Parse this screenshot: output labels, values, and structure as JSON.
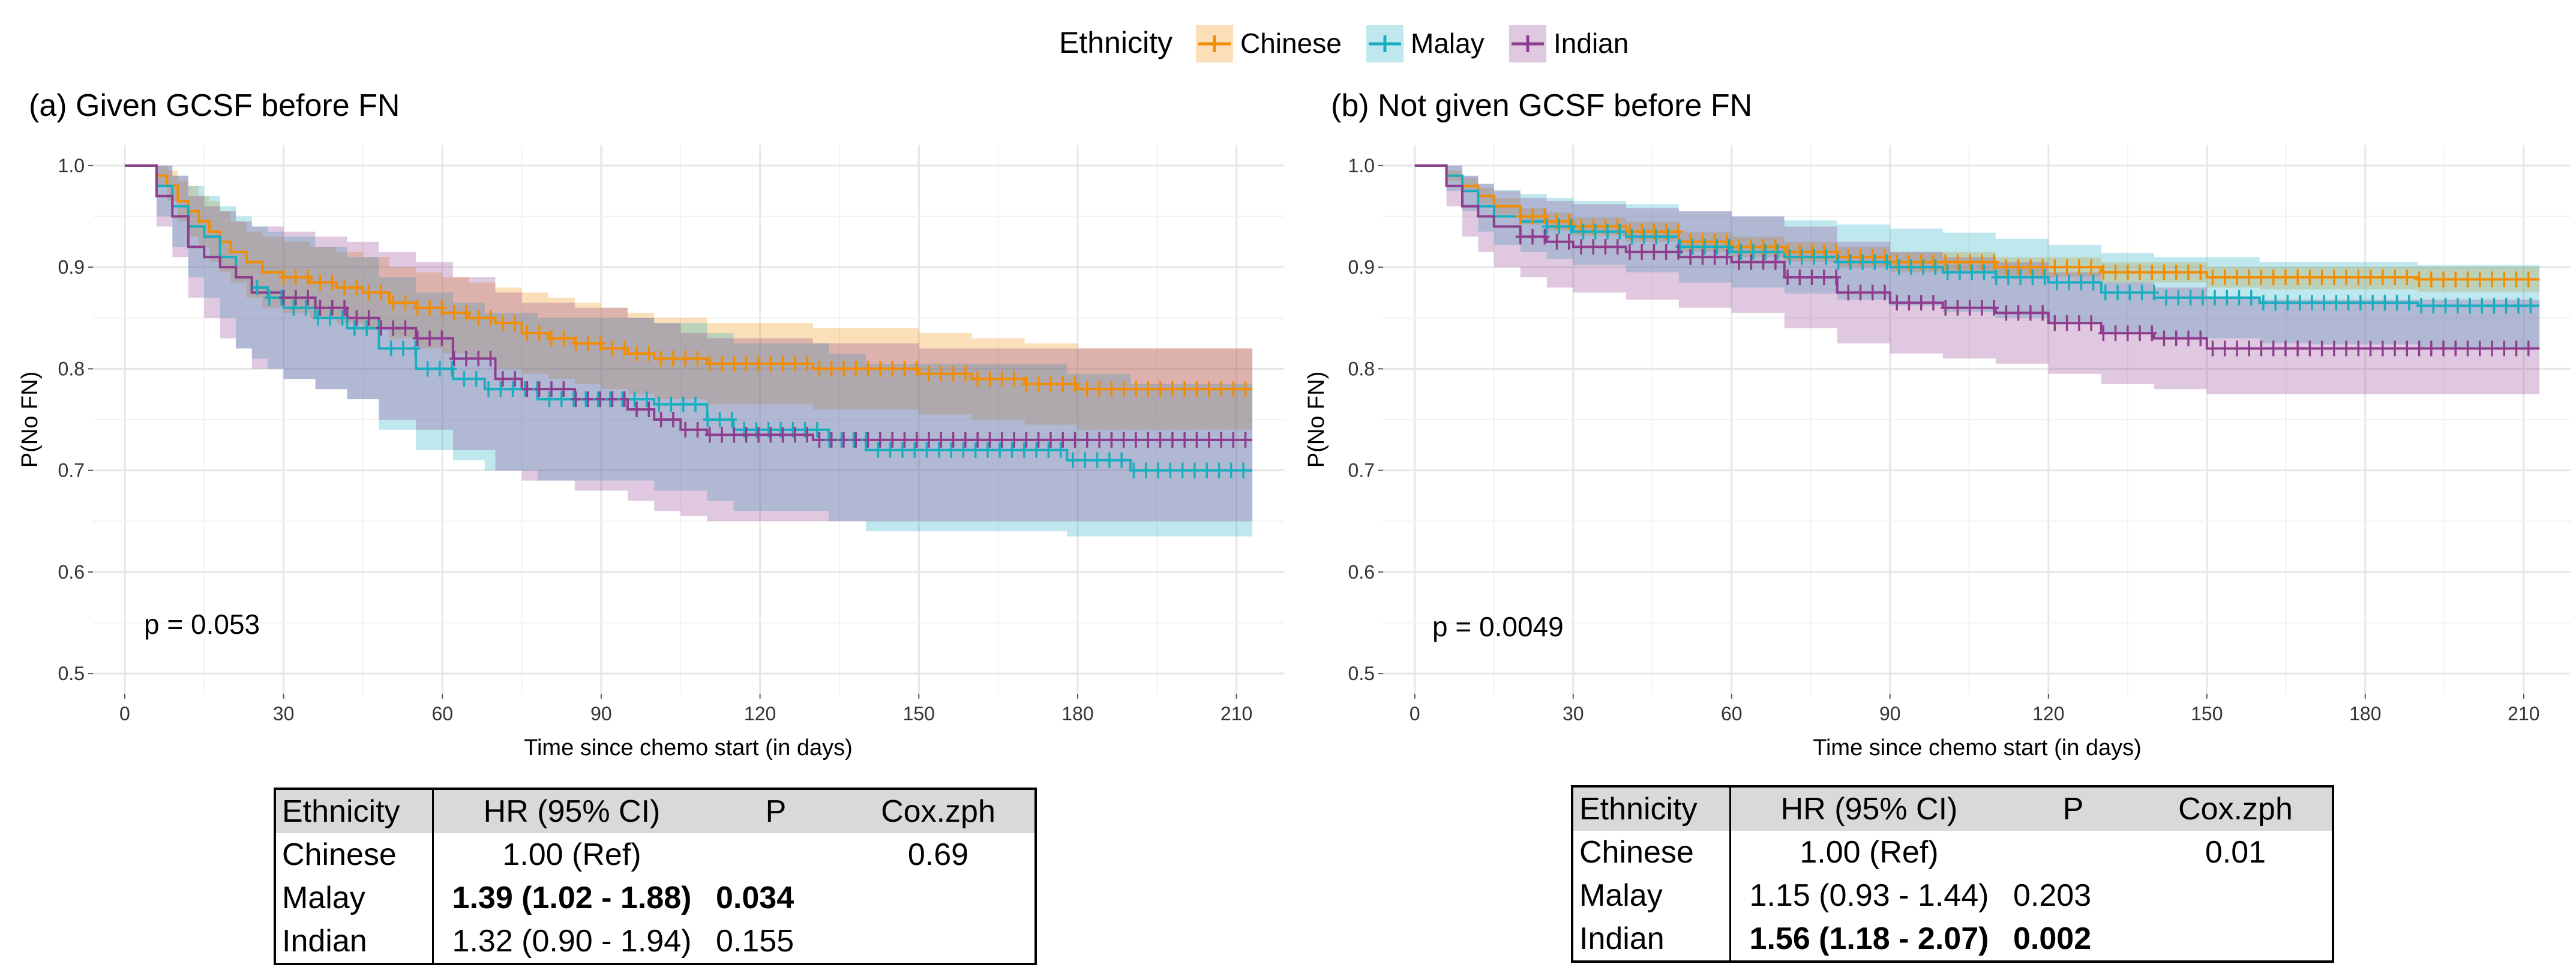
{
  "colors": {
    "Chinese": "#f28c00",
    "Malay": "#17aebf",
    "Indian": "#8e3d8e"
  },
  "legend": {
    "title": "Ethnicity",
    "items": [
      "Chinese",
      "Malay",
      "Indian"
    ]
  },
  "chart_data": [
    {
      "type": "line",
      "subtype": "kaplan-meier step curves with 95% confidence bands and censor marks",
      "title": "(a) Given GCSF before FN",
      "xlabel": "Time since chemo start (in days)",
      "ylabel": "P(No FN)",
      "xlim": [
        -6,
        219
      ],
      "ylim": [
        0.48,
        1.02
      ],
      "xticks": [
        0,
        30,
        60,
        90,
        120,
        150,
        180,
        210
      ],
      "yticks": [
        0.5,
        0.6,
        0.7,
        0.8,
        0.9,
        1.0
      ],
      "ytick_labels": [
        "0.5",
        "0.6",
        "0.7",
        "0.8",
        "0.9",
        "1.0"
      ],
      "grid": true,
      "annotation": "p = 0.053",
      "series": [
        {
          "name": "Chinese",
          "x": [
            0,
            2,
            4,
            6,
            8,
            10,
            12,
            14,
            16,
            18,
            20,
            23,
            26,
            30,
            35,
            40,
            45,
            50,
            55,
            60,
            65,
            70,
            75,
            80,
            85,
            90,
            95,
            100,
            105,
            110,
            115,
            120,
            130,
            140,
            150,
            160,
            170,
            180,
            190,
            200,
            213
          ],
          "y": [
            1.0,
            1.0,
            1.0,
            0.99,
            0.98,
            0.965,
            0.955,
            0.945,
            0.935,
            0.925,
            0.915,
            0.905,
            0.895,
            0.89,
            0.885,
            0.88,
            0.875,
            0.865,
            0.86,
            0.855,
            0.85,
            0.845,
            0.835,
            0.83,
            0.825,
            0.82,
            0.815,
            0.81,
            0.81,
            0.805,
            0.805,
            0.805,
            0.8,
            0.8,
            0.795,
            0.79,
            0.785,
            0.78,
            0.78,
            0.78,
            0.78
          ],
          "lower": [
            1.0,
            1.0,
            1.0,
            0.98,
            0.965,
            0.945,
            0.93,
            0.92,
            0.905,
            0.895,
            0.885,
            0.87,
            0.86,
            0.855,
            0.85,
            0.845,
            0.84,
            0.83,
            0.82,
            0.815,
            0.81,
            0.8,
            0.795,
            0.79,
            0.785,
            0.78,
            0.775,
            0.77,
            0.77,
            0.765,
            0.765,
            0.765,
            0.76,
            0.76,
            0.755,
            0.75,
            0.745,
            0.74,
            0.74,
            0.74,
            0.74
          ],
          "upper": [
            1.0,
            1.0,
            1.0,
            1.0,
            0.995,
            0.985,
            0.98,
            0.97,
            0.965,
            0.955,
            0.945,
            0.935,
            0.93,
            0.925,
            0.92,
            0.915,
            0.91,
            0.9,
            0.895,
            0.89,
            0.885,
            0.88,
            0.875,
            0.87,
            0.865,
            0.86,
            0.855,
            0.85,
            0.85,
            0.845,
            0.845,
            0.845,
            0.84,
            0.84,
            0.835,
            0.83,
            0.825,
            0.82,
            0.82,
            0.82,
            0.82
          ],
          "censor_x_range": [
            30,
            213
          ]
        },
        {
          "name": "Malay",
          "x": [
            0,
            3,
            6,
            9,
            12,
            15,
            18,
            21,
            24,
            27,
            30,
            36,
            42,
            48,
            55,
            62,
            68,
            72,
            78,
            85,
            90,
            100,
            110,
            115,
            125,
            133,
            140,
            150,
            160,
            170,
            178,
            190,
            200,
            213
          ],
          "y": [
            1.0,
            1.0,
            0.98,
            0.96,
            0.94,
            0.93,
            0.91,
            0.89,
            0.88,
            0.87,
            0.86,
            0.85,
            0.84,
            0.82,
            0.8,
            0.79,
            0.78,
            0.78,
            0.77,
            0.77,
            0.77,
            0.765,
            0.75,
            0.74,
            0.74,
            0.73,
            0.72,
            0.72,
            0.72,
            0.72,
            0.71,
            0.7,
            0.7,
            0.7
          ],
          "lower": [
            1.0,
            1.0,
            0.95,
            0.92,
            0.89,
            0.87,
            0.85,
            0.82,
            0.81,
            0.8,
            0.79,
            0.78,
            0.77,
            0.74,
            0.72,
            0.71,
            0.7,
            0.7,
            0.69,
            0.69,
            0.69,
            0.68,
            0.67,
            0.66,
            0.66,
            0.65,
            0.64,
            0.64,
            0.64,
            0.64,
            0.635,
            0.635,
            0.635,
            0.635
          ],
          "upper": [
            1.0,
            1.0,
            1.0,
            0.99,
            0.98,
            0.97,
            0.96,
            0.95,
            0.94,
            0.935,
            0.93,
            0.92,
            0.91,
            0.89,
            0.875,
            0.865,
            0.855,
            0.855,
            0.85,
            0.85,
            0.85,
            0.845,
            0.835,
            0.825,
            0.825,
            0.815,
            0.805,
            0.805,
            0.805,
            0.805,
            0.795,
            0.785,
            0.785,
            0.785
          ],
          "censor_x_range": [
            25,
            213
          ]
        },
        {
          "name": "Indian",
          "x": [
            0,
            3,
            6,
            9,
            12,
            15,
            18,
            21,
            24,
            27,
            30,
            36,
            42,
            48,
            55,
            62,
            70,
            75,
            85,
            95,
            100,
            105,
            110,
            120,
            130,
            140,
            150,
            160,
            170,
            180,
            190,
            200,
            213
          ],
          "y": [
            1.0,
            1.0,
            0.97,
            0.95,
            0.92,
            0.91,
            0.9,
            0.89,
            0.875,
            0.875,
            0.87,
            0.86,
            0.85,
            0.84,
            0.83,
            0.81,
            0.79,
            0.78,
            0.77,
            0.76,
            0.75,
            0.74,
            0.735,
            0.735,
            0.73,
            0.73,
            0.73,
            0.73,
            0.73,
            0.73,
            0.73,
            0.73,
            0.73
          ],
          "lower": [
            1.0,
            1.0,
            0.94,
            0.91,
            0.87,
            0.85,
            0.83,
            0.82,
            0.8,
            0.8,
            0.79,
            0.78,
            0.77,
            0.75,
            0.74,
            0.72,
            0.7,
            0.69,
            0.68,
            0.67,
            0.66,
            0.655,
            0.65,
            0.65,
            0.65,
            0.65,
            0.65,
            0.65,
            0.65,
            0.65,
            0.65,
            0.65,
            0.65
          ],
          "upper": [
            1.0,
            1.0,
            1.0,
            0.99,
            0.97,
            0.96,
            0.955,
            0.945,
            0.94,
            0.94,
            0.935,
            0.93,
            0.925,
            0.915,
            0.905,
            0.89,
            0.875,
            0.865,
            0.86,
            0.85,
            0.845,
            0.835,
            0.83,
            0.83,
            0.825,
            0.825,
            0.82,
            0.82,
            0.82,
            0.82,
            0.82,
            0.82,
            0.82
          ],
          "censor_x_range": [
            30,
            213
          ]
        }
      ]
    },
    {
      "type": "line",
      "subtype": "kaplan-meier step curves with 95% confidence bands and censor marks",
      "title": "(b) Not given GCSF before FN",
      "xlabel": "Time since chemo start (in days)",
      "ylabel": "P(No FN)",
      "xlim": [
        -6,
        219
      ],
      "ylim": [
        0.48,
        1.02
      ],
      "xticks": [
        0,
        30,
        60,
        90,
        120,
        150,
        180,
        210
      ],
      "yticks": [
        0.5,
        0.6,
        0.7,
        0.8,
        0.9,
        1.0
      ],
      "ytick_labels": [
        "0.5",
        "0.6",
        "0.7",
        "0.8",
        "0.9",
        "1.0"
      ],
      "grid": true,
      "annotation": "p = 0.0049",
      "series": [
        {
          "name": "Chinese",
          "x": [
            0,
            3,
            6,
            9,
            12,
            15,
            20,
            25,
            30,
            40,
            50,
            60,
            70,
            80,
            90,
            100,
            110,
            120,
            130,
            140,
            150,
            160,
            170,
            180,
            190,
            200,
            213
          ],
          "y": [
            1.0,
            1.0,
            0.99,
            0.98,
            0.97,
            0.96,
            0.95,
            0.945,
            0.94,
            0.935,
            0.925,
            0.92,
            0.915,
            0.91,
            0.905,
            0.905,
            0.9,
            0.9,
            0.895,
            0.895,
            0.89,
            0.89,
            0.89,
            0.89,
            0.888,
            0.888,
            0.888
          ],
          "lower": [
            1.0,
            1.0,
            0.985,
            0.975,
            0.962,
            0.952,
            0.942,
            0.936,
            0.931,
            0.925,
            0.915,
            0.91,
            0.905,
            0.9,
            0.895,
            0.895,
            0.89,
            0.89,
            0.885,
            0.885,
            0.88,
            0.878,
            0.878,
            0.878,
            0.876,
            0.876,
            0.876
          ],
          "upper": [
            1.0,
            1.0,
            0.995,
            0.988,
            0.978,
            0.968,
            0.958,
            0.954,
            0.949,
            0.945,
            0.935,
            0.93,
            0.925,
            0.92,
            0.915,
            0.915,
            0.91,
            0.91,
            0.905,
            0.905,
            0.9,
            0.9,
            0.9,
            0.9,
            0.9,
            0.9,
            0.9
          ],
          "censor_x_range": [
            20,
            213
          ]
        },
        {
          "name": "Malay",
          "x": [
            0,
            3,
            6,
            9,
            12,
            15,
            20,
            25,
            30,
            40,
            50,
            60,
            70,
            80,
            90,
            100,
            110,
            120,
            130,
            140,
            150,
            160,
            170,
            180,
            190,
            200,
            213
          ],
          "y": [
            1.0,
            1.0,
            0.99,
            0.975,
            0.96,
            0.95,
            0.945,
            0.94,
            0.935,
            0.93,
            0.92,
            0.915,
            0.91,
            0.905,
            0.9,
            0.895,
            0.89,
            0.885,
            0.875,
            0.87,
            0.87,
            0.865,
            0.865,
            0.865,
            0.862,
            0.862,
            0.862
          ],
          "lower": [
            1.0,
            1.0,
            0.975,
            0.955,
            0.935,
            0.922,
            0.915,
            0.908,
            0.902,
            0.895,
            0.885,
            0.88,
            0.874,
            0.868,
            0.862,
            0.856,
            0.85,
            0.845,
            0.836,
            0.83,
            0.83,
            0.825,
            0.824,
            0.824,
            0.82,
            0.82,
            0.82
          ],
          "upper": [
            1.0,
            1.0,
            1.0,
            0.99,
            0.982,
            0.976,
            0.972,
            0.968,
            0.965,
            0.962,
            0.955,
            0.95,
            0.946,
            0.942,
            0.938,
            0.934,
            0.928,
            0.922,
            0.914,
            0.91,
            0.91,
            0.905,
            0.905,
            0.905,
            0.902,
            0.902,
            0.902
          ],
          "censor_x_range": [
            25,
            213
          ]
        },
        {
          "name": "Indian",
          "x": [
            0,
            3,
            6,
            9,
            12,
            15,
            20,
            25,
            30,
            40,
            50,
            60,
            70,
            80,
            90,
            100,
            110,
            120,
            130,
            140,
            150,
            160,
            170,
            180,
            190,
            200,
            213
          ],
          "y": [
            1.0,
            1.0,
            0.98,
            0.96,
            0.95,
            0.94,
            0.93,
            0.925,
            0.92,
            0.915,
            0.91,
            0.905,
            0.89,
            0.875,
            0.865,
            0.86,
            0.855,
            0.845,
            0.835,
            0.83,
            0.82,
            0.82,
            0.82,
            0.82,
            0.82,
            0.82,
            0.82
          ],
          "lower": [
            1.0,
            1.0,
            0.96,
            0.93,
            0.915,
            0.9,
            0.89,
            0.88,
            0.875,
            0.868,
            0.86,
            0.855,
            0.84,
            0.825,
            0.815,
            0.81,
            0.805,
            0.795,
            0.785,
            0.78,
            0.775,
            0.775,
            0.775,
            0.775,
            0.775,
            0.775,
            0.775
          ],
          "upper": [
            1.0,
            1.0,
            1.0,
            0.99,
            0.982,
            0.975,
            0.968,
            0.965,
            0.962,
            0.958,
            0.955,
            0.95,
            0.94,
            0.925,
            0.915,
            0.91,
            0.905,
            0.895,
            0.885,
            0.88,
            0.87,
            0.868,
            0.868,
            0.868,
            0.868,
            0.868,
            0.868
          ],
          "censor_x_range": [
            20,
            213
          ]
        }
      ]
    }
  ],
  "tables": [
    {
      "headers": [
        "Ethnicity",
        "HR (95% CI)",
        "P",
        "Cox.zph"
      ],
      "rows": [
        {
          "ethnicity": "Chinese",
          "hr": "1.00 (Ref)",
          "p": "",
          "coxzph": "0.69"
        },
        {
          "ethnicity": "Malay",
          "hr": "1.39 (1.02 - 1.88)",
          "p": "0.034",
          "coxzph": ""
        },
        {
          "ethnicity": "Indian",
          "hr": "1.32 (0.90 - 1.94)",
          "p": "0.155",
          "coxzph": ""
        }
      ]
    },
    {
      "headers": [
        "Ethnicity",
        "HR (95% CI)",
        "P",
        "Cox.zph"
      ],
      "rows": [
        {
          "ethnicity": "Chinese",
          "hr": "1.00 (Ref)",
          "p": "",
          "coxzph": "0.01"
        },
        {
          "ethnicity": "Malay",
          "hr": "1.15 (0.93 - 1.44)",
          "p": "0.203",
          "coxzph": ""
        },
        {
          "ethnicity": "Indian",
          "hr": "1.56 (1.18 - 2.07)",
          "p": "0.002",
          "coxzph": ""
        }
      ]
    }
  ]
}
